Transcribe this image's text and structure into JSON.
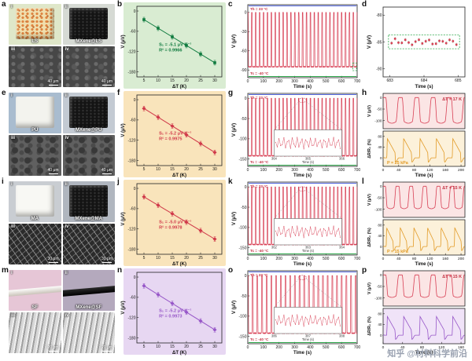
{
  "watermark": "知乎 @材料科学前沿",
  "panels": {
    "a": {
      "letter": "a",
      "photos": [
        {
          "tag": "i",
          "label": "LS"
        },
        {
          "tag": "ii",
          "label": "MXene@LS"
        },
        {
          "tag": "iii",
          "scale": "40 μm"
        },
        {
          "tag": "iv",
          "scale": "40 μm"
        }
      ]
    },
    "b": {
      "letter": "b"
    },
    "c": {
      "letter": "c"
    },
    "d": {
      "letter": "d"
    },
    "e": {
      "letter": "e",
      "photos": [
        {
          "tag": "i",
          "label": "PU"
        },
        {
          "tag": "ii",
          "label": "MXene@PU"
        },
        {
          "tag": "iii",
          "scale": "40 μm"
        },
        {
          "tag": "iv",
          "scale": "40 μm"
        }
      ]
    },
    "f": {
      "letter": "f"
    },
    "g": {
      "letter": "g"
    },
    "h": {
      "letter": "h"
    },
    "i": {
      "letter": "i",
      "photos": [
        {
          "tag": "i",
          "label": "MA"
        },
        {
          "tag": "ii",
          "label": "MXene@MA"
        },
        {
          "tag": "iii",
          "scale": "30 μm"
        },
        {
          "tag": "iv",
          "scale": "30 μm"
        }
      ]
    },
    "j": {
      "letter": "j"
    },
    "k": {
      "letter": "k"
    },
    "l": {
      "letter": "l"
    },
    "m": {
      "letter": "m",
      "photos": [
        {
          "tag": "i",
          "label": "SF"
        },
        {
          "tag": "ii",
          "label": "MXene@SF"
        },
        {
          "tag": "iii",
          "scale": "20 μm"
        },
        {
          "tag": "iv",
          "scale": "20 μm"
        }
      ]
    },
    "n": {
      "letter": "n"
    },
    "o": {
      "letter": "o"
    },
    "p": {
      "letter": "p"
    }
  },
  "chart_data": {
    "b": {
      "type": "linefit",
      "panel_bg": "#d9ecd2",
      "color": "#0e7a3e",
      "marker": "square",
      "xlabel": "ΔT (K)",
      "ylabel": "V (μV)",
      "xlim": [
        2.5,
        32.5
      ],
      "ylim": [
        -195,
        14
      ],
      "xticks": [
        5,
        10,
        15,
        20,
        25,
        30
      ],
      "yticks": [
        0,
        -60,
        -120,
        -180
      ],
      "x": [
        5,
        10,
        15,
        20,
        25,
        30
      ],
      "y": [
        -25.5,
        -51,
        -76.5,
        -102,
        -127.5,
        -153
      ],
      "ann": [
        "S₁ = -5.1 μV K⁻¹",
        "R² = 0.9966"
      ]
    },
    "c": {
      "type": "osc",
      "color": "#d84055",
      "xlabel": "Time (s)",
      "ylabel": "V (μV)",
      "xlim": [
        0,
        700
      ],
      "ylim": [
        -102,
        12
      ],
      "xticks": [
        0,
        100,
        200,
        300,
        400,
        500,
        600,
        700
      ],
      "yticks": [
        0,
        -30,
        -60,
        -90
      ],
      "high": 0,
      "low": -85,
      "period": 25,
      "hot_label": "Th = 23 °C",
      "hot_color": "#5568e0",
      "cold_label": "Tc = -40 °C",
      "cold_color": "#2fa84c",
      "zoom_box": {
        "x0": 672,
        "x1": 696,
        "y0": -79,
        "y1": -91
      }
    },
    "d": {
      "type": "zoom",
      "color": "#d84055",
      "bar_color": "#2fa84c",
      "box_color": "#2fa84c",
      "xlabel": "Time (s)",
      "ylabel": "V (μV)",
      "xlim": [
        682.8,
        685.2
      ],
      "ylim": [
        -91.5,
        -78.5
      ],
      "xticks": [
        683,
        684,
        685
      ],
      "yticks": [
        -80,
        -85,
        -90
      ],
      "mean": -85,
      "spread": 0.6,
      "n": 20
    },
    "f": {
      "type": "linefit",
      "panel_bg": "#f9e4bb",
      "color": "#d03a4a",
      "marker": "diamond",
      "xlabel": "ΔT (K)",
      "ylabel": "V (μV)",
      "xlim": [
        2.5,
        32.5
      ],
      "ylim": [
        -195,
        14
      ],
      "xticks": [
        5,
        10,
        15,
        20,
        25,
        30
      ],
      "yticks": [
        0,
        -60,
        -120,
        -180
      ],
      "x": [
        5,
        10,
        15,
        20,
        25,
        30
      ],
      "y": [
        -26,
        -52,
        -78,
        -104,
        -130,
        -156
      ],
      "ann": [
        "S₁ = -5.2 μV K⁻¹",
        "R² = 0.9975"
      ]
    },
    "g": {
      "type": "osc",
      "color": "#d84055",
      "xlabel": "Time (s)",
      "ylabel": "V (μV)",
      "xlim": [
        0,
        700
      ],
      "ylim": [
        -168,
        12
      ],
      "xticks": [
        0,
        100,
        200,
        300,
        400,
        500,
        600,
        700
      ],
      "yticks": [
        0,
        -50,
        -100,
        -150
      ],
      "high": 0,
      "low": -142,
      "period": 25,
      "hot_label": "Th = 23 °C",
      "hot_color": "#5568e0",
      "cold_label": "Tc = -40 °C",
      "cold_color": "#2fa84c",
      "inset": {
        "xticks": [
          364,
          365,
          366
        ],
        "xlabel": "Time (s)"
      }
    },
    "h": {
      "type": "dual",
      "xlabel": "Time (s)",
      "xlim": [
        0,
        210
      ],
      "xticks": [
        0,
        40,
        80,
        120,
        160,
        200
      ],
      "top": {
        "color": "#d84055",
        "bg": "#fbe5e5",
        "ylabel": "V (μV)",
        "ylim": [
          -135,
          18
        ],
        "yticks": [
          0,
          -50,
          -100
        ],
        "low": -105,
        "pulses": 5,
        "label": "ΔT = 17 K"
      },
      "bottom": {
        "color": "#e29b27",
        "bg": "#fcf1da",
        "ylabel": "ΔR/R₀ (%)",
        "ylim": [
          -32,
          100
        ],
        "yticks": [
          0,
          40,
          80
        ],
        "high": 72,
        "pulses": 5,
        "label": "P = 25 kPa"
      }
    },
    "j": {
      "type": "linefit",
      "panel_bg": "#f9e4bb",
      "color": "#d03a4a",
      "marker": "diamond",
      "xlabel": "ΔT (K)",
      "ylabel": "V (μV)",
      "xlim": [
        2.5,
        32.5
      ],
      "ylim": [
        -195,
        14
      ],
      "xticks": [
        5,
        10,
        15,
        20,
        25,
        30
      ],
      "yticks": [
        0,
        -60,
        -120,
        -180
      ],
      "x": [
        5,
        10,
        15,
        20,
        25,
        30
      ],
      "y": [
        -25,
        -50,
        -75,
        -100,
        -125,
        -150
      ],
      "ann": [
        "S₁ = -5.0 μV K⁻¹",
        "R² = 0.9978"
      ]
    },
    "k": {
      "type": "osc",
      "color": "#d84055",
      "xlabel": "Time (s)",
      "ylabel": "V (μV)",
      "xlim": [
        0,
        700
      ],
      "ylim": [
        -168,
        12
      ],
      "xticks": [
        0,
        100,
        200,
        300,
        400,
        500,
        600,
        700
      ],
      "yticks": [
        0,
        -50,
        -100,
        -150
      ],
      "high": 0,
      "low": -142,
      "period": 25,
      "hot_label": "Th = 23 °C",
      "hot_color": "#5568e0",
      "cold_label": "Tc = -40 °C",
      "cold_color": "#2fa84c",
      "inset": {
        "xticks": [
          362,
          363,
          364
        ],
        "xlabel": "Time (s)"
      }
    },
    "l": {
      "type": "dual",
      "xlabel": "Time (s)",
      "xlim": [
        0,
        210
      ],
      "xticks": [
        0,
        40,
        80,
        120,
        160,
        200
      ],
      "top": {
        "color": "#d84055",
        "bg": "#fbe5e5",
        "ylabel": "V (μV)",
        "ylim": [
          -135,
          18
        ],
        "yticks": [
          0,
          -50,
          -100
        ],
        "low": -92,
        "pulses": 6,
        "label": "ΔT = 15 K"
      },
      "bottom": {
        "color": "#e29b27",
        "bg": "#fcf1da",
        "ylabel": "ΔR/R₀ (%)",
        "ylim": [
          -32,
          100
        ],
        "yticks": [
          0,
          40,
          80
        ],
        "high": 70,
        "pulses": 6,
        "label": "P = 15 kPa"
      }
    },
    "n": {
      "type": "linefit",
      "panel_bg": "#e7d7f2",
      "color": "#9757c8",
      "marker": "diamond",
      "xlabel": "ΔT (K)",
      "ylabel": "V (μV)",
      "xlim": [
        2.5,
        32.5
      ],
      "ylim": [
        -195,
        14
      ],
      "xticks": [
        5,
        10,
        15,
        20,
        25,
        30
      ],
      "yticks": [
        0,
        -60,
        -120,
        -180
      ],
      "x": [
        5,
        10,
        15,
        20,
        25,
        30
      ],
      "y": [
        -26,
        -52,
        -78,
        -104,
        -130,
        -156
      ],
      "ann": [
        "S₁ = -5.2 μV K⁻¹",
        "R² = 0.9973"
      ]
    },
    "o": {
      "type": "osc",
      "color": "#d84055",
      "xlabel": "Time (s)",
      "ylabel": "V (μV)",
      "xlim": [
        0,
        700
      ],
      "ylim": [
        -168,
        12
      ],
      "xticks": [
        0,
        100,
        200,
        300,
        400,
        500,
        600,
        700
      ],
      "yticks": [
        0,
        -50,
        -100,
        -150
      ],
      "high": 0,
      "low": -142,
      "period": 30,
      "hot_label": "Th = 23 °C",
      "hot_color": "#5568e0",
      "cold_label": "Tc = -40 °C",
      "cold_color": "#2fa84c",
      "inset": {
        "xticks": [
          386,
          387,
          388
        ],
        "xlabel": "Time (s)"
      }
    },
    "p": {
      "type": "dual",
      "xlabel": "Time (s)",
      "xlim": [
        0,
        168
      ],
      "xticks": [
        0,
        40,
        80,
        120,
        160
      ],
      "top": {
        "color": "#d84055",
        "bg": "#fbe5e5",
        "ylabel": "V (μV)",
        "ylim": [
          -135,
          18
        ],
        "yticks": [
          0,
          -50,
          -100
        ],
        "low": -92,
        "pulses": 5,
        "label": "ΔT = 15 K"
      },
      "bottom": {
        "color": "#9757c8",
        "bg": "#f0e3f8",
        "ylabel": "ΔR/R₀ (%)",
        "ylim": [
          -32,
          100
        ],
        "yticks": [
          0,
          40,
          80
        ],
        "high": 70,
        "pulses": 5,
        "label": ""
      }
    }
  }
}
